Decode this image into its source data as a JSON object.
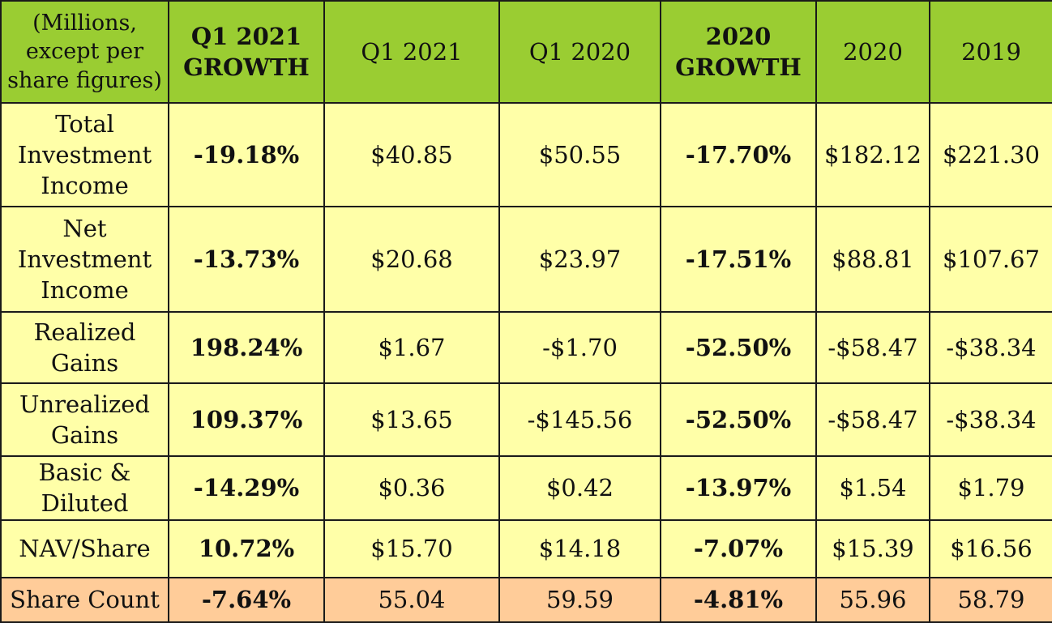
{
  "table": {
    "header": [
      {
        "label": "(Millions,\nexcept per\nshare figures)",
        "bold": false
      },
      {
        "label": "Q1 2021\nGROWTH",
        "bold": true
      },
      {
        "label": "Q1 2021",
        "bold": false
      },
      {
        "label": "Q1 2020",
        "bold": false
      },
      {
        "label": "2020\nGROWTH",
        "bold": true
      },
      {
        "label": "2020",
        "bold": false
      },
      {
        "label": "2019",
        "bold": false
      }
    ],
    "rows": [
      {
        "label": "Total\nInvestment\nIncome",
        "cells": [
          "-19.18%",
          "$40.85",
          "$50.55",
          "-17.70%",
          "$182.12",
          "$221.30"
        ]
      },
      {
        "label": "Net\nInvestment\nIncome",
        "cells": [
          "-13.73%",
          "$20.68",
          "$23.97",
          "-17.51%",
          "$88.81",
          "$107.67"
        ]
      },
      {
        "label": "Realized\nGains",
        "cells": [
          "198.24%",
          "$1.67",
          "-$1.70",
          "-52.50%",
          "-$58.47",
          "-$38.34"
        ]
      },
      {
        "label": "Unrealized\nGains",
        "cells": [
          "109.37%",
          "$13.65",
          "-$145.56",
          "-52.50%",
          "-$58.47",
          "-$38.34"
        ]
      },
      {
        "label": "Basic &\nDiluted",
        "cells": [
          "-14.29%",
          "$0.36",
          "$0.42",
          "-13.97%",
          "$1.54",
          "$1.79"
        ]
      },
      {
        "label": "NAV/Share",
        "cells": [
          "10.72%",
          "$15.70",
          "$14.18",
          "-7.07%",
          "$15.39",
          "$16.56"
        ]
      },
      {
        "label": "Share Count",
        "cells": [
          "-7.64%",
          "55.04",
          "59.59",
          "-4.81%",
          "55.96",
          "58.79"
        ],
        "accent": true
      }
    ]
  },
  "colors": {
    "header_bg": "#9acd32",
    "row_bg": "#ffffa8",
    "accent_row_bg": "#ffcc99",
    "border": "#1a1a1a"
  }
}
